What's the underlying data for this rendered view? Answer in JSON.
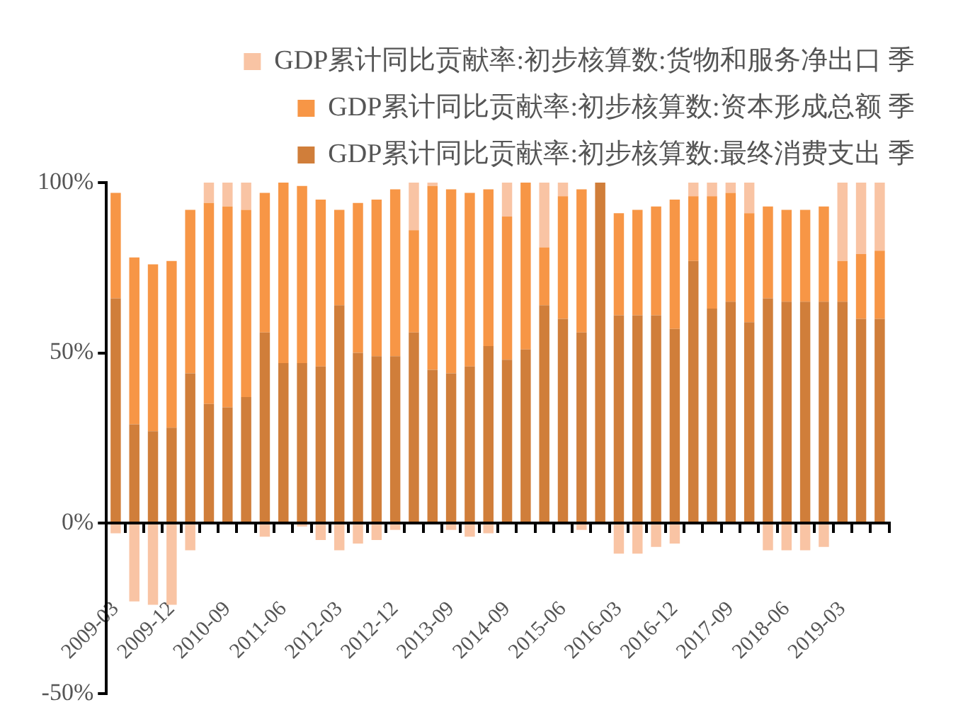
{
  "chart_data": {
    "type": "bar",
    "stacked": true,
    "legend": "top",
    "categories": [
      "2009-03",
      null,
      null,
      "2009-12",
      null,
      null,
      "2010-09",
      null,
      null,
      "2011-06",
      null,
      null,
      "2012-03",
      null,
      null,
      "2012-12",
      null,
      null,
      "2013-09",
      null,
      null,
      "2014-09",
      null,
      null,
      "2015-06",
      null,
      null,
      "2016-03",
      null,
      null,
      "2016-12",
      null,
      null,
      "2017-09",
      null,
      null,
      "2018-06",
      null,
      null,
      "2019-03",
      null,
      null
    ],
    "series": [
      {
        "name": "GDP累计同比贡献率:初步核算数:最终消费支出 季",
        "color": "#d07e3a",
        "values": [
          66,
          29,
          27,
          28,
          44,
          35,
          34,
          37,
          56,
          47,
          47,
          46,
          64,
          50,
          49,
          49,
          56,
          45,
          44,
          46,
          52,
          48,
          51,
          64,
          60,
          56,
          100,
          61,
          61,
          61,
          57,
          77,
          63,
          65,
          59,
          66,
          65,
          65,
          65,
          65,
          60,
          60
        ]
      },
      {
        "name": "GDP累计同比贡献率:初步核算数:资本形成总额 季",
        "color": "#f79646",
        "values": [
          31,
          49,
          49,
          49,
          48,
          59,
          59,
          55,
          41,
          53,
          52,
          49,
          28,
          44,
          46,
          49,
          30,
          54,
          54,
          51,
          46,
          42,
          49,
          17,
          36,
          42,
          0,
          30,
          31,
          32,
          38,
          19,
          33,
          32,
          32,
          27,
          27,
          27,
          28,
          12,
          19,
          20
        ]
      },
      {
        "name": "GDP累计同比贡献率:初步核算数:货物和服务净出口 季",
        "color": "#f9c4a4",
        "values": [
          -3,
          -23,
          -24,
          -24,
          -8,
          6,
          7,
          8,
          -4,
          0,
          -1,
          -5,
          -8,
          -6,
          -5,
          -2,
          14,
          1,
          -2,
          -4,
          -3,
          10,
          0,
          19,
          4,
          -2,
          0,
          -9,
          -9,
          -7,
          -6,
          4,
          4,
          3,
          9,
          -8,
          -8,
          -8,
          -7,
          23,
          21,
          20
        ]
      }
    ],
    "ylim": [
      -50,
      100
    ],
    "yticks": [
      {
        "value": -50,
        "label": "-50%"
      },
      {
        "value": 0,
        "label": "0%"
      },
      {
        "value": 50,
        "label": "50%"
      },
      {
        "value": 100,
        "label": "100%"
      }
    ]
  }
}
